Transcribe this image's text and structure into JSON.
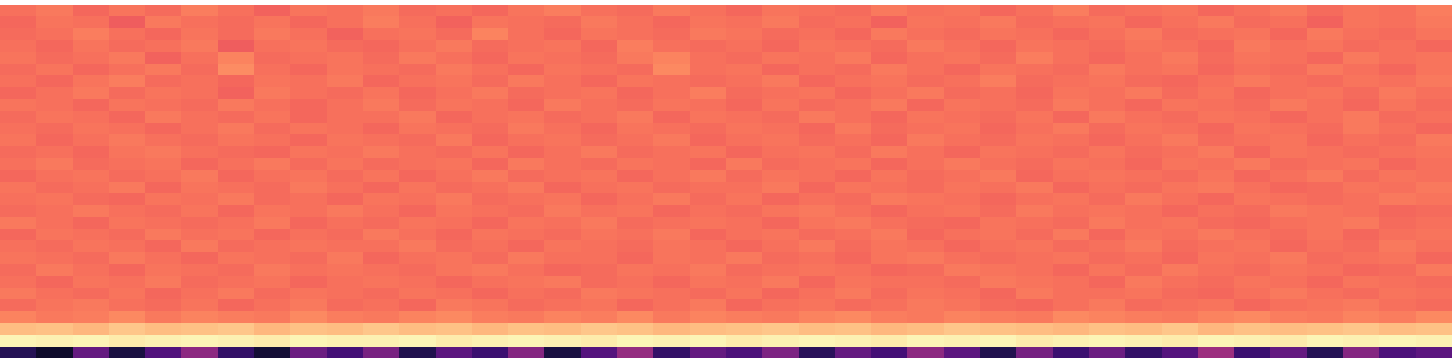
{
  "chart_data": {
    "type": "heatmap",
    "color": "magma",
    "zlim": [
      0,
      1
    ],
    "tick_labels": false,
    "cells": [
      [
        0.7,
        0.72,
        0.68,
        0.71,
        0.69,
        0.73,
        0.7,
        0.67,
        0.71,
        0.7,
        0.72,
        0.69,
        0.7,
        0.68,
        0.71,
        0.73,
        0.7,
        0.69,
        0.72,
        0.7,
        0.68,
        0.71,
        0.7,
        0.69,
        0.72,
        0.7,
        0.71,
        0.68,
        0.7,
        0.73,
        0.69,
        0.7,
        0.71,
        0.68,
        0.7,
        0.72,
        0.69,
        0.71,
        0.7,
        0.73
      ],
      [
        0.68,
        0.71,
        0.7,
        0.66,
        0.72,
        0.7,
        0.69,
        0.71,
        0.68,
        0.7,
        0.73,
        0.7,
        0.67,
        0.71,
        0.7,
        0.69,
        0.72,
        0.7,
        0.68,
        0.71,
        0.7,
        0.72,
        0.69,
        0.7,
        0.67,
        0.71,
        0.7,
        0.72,
        0.69,
        0.7,
        0.71,
        0.68,
        0.7,
        0.72,
        0.69,
        0.7,
        0.67,
        0.71,
        0.7,
        0.72
      ],
      [
        0.69,
        0.7,
        0.73,
        0.7,
        0.68,
        0.71,
        0.69,
        0.72,
        0.7,
        0.67,
        0.7,
        0.71,
        0.69,
        0.74,
        0.7,
        0.68,
        0.71,
        0.7,
        0.69,
        0.72,
        0.71,
        0.69,
        0.7,
        0.68,
        0.72,
        0.7,
        0.69,
        0.71,
        0.7,
        0.68,
        0.7,
        0.72,
        0.69,
        0.7,
        0.71,
        0.68,
        0.72,
        0.7,
        0.69,
        0.71
      ],
      [
        0.7,
        0.68,
        0.71,
        0.69,
        0.7,
        0.72,
        0.66,
        0.7,
        0.71,
        0.69,
        0.68,
        0.7,
        0.72,
        0.69,
        0.7,
        0.71,
        0.68,
        0.73,
        0.7,
        0.69,
        0.7,
        0.68,
        0.71,
        0.7,
        0.69,
        0.72,
        0.7,
        0.68,
        0.71,
        0.7,
        0.69,
        0.71,
        0.7,
        0.68,
        0.72,
        0.7,
        0.71,
        0.69,
        0.7,
        0.68
      ],
      [
        0.71,
        0.69,
        0.7,
        0.72,
        0.67,
        0.7,
        0.74,
        0.69,
        0.7,
        0.71,
        0.69,
        0.72,
        0.7,
        0.68,
        0.71,
        0.7,
        0.69,
        0.72,
        0.74,
        0.7,
        0.69,
        0.71,
        0.7,
        0.72,
        0.68,
        0.7,
        0.71,
        0.69,
        0.73,
        0.7,
        0.68,
        0.7,
        0.72,
        0.69,
        0.71,
        0.7,
        0.68,
        0.72,
        0.7,
        0.71
      ],
      [
        0.69,
        0.71,
        0.68,
        0.7,
        0.72,
        0.69,
        0.76,
        0.7,
        0.68,
        0.71,
        0.7,
        0.69,
        0.72,
        0.7,
        0.68,
        0.71,
        0.7,
        0.69,
        0.75,
        0.7,
        0.71,
        0.68,
        0.7,
        0.69,
        0.72,
        0.7,
        0.68,
        0.71,
        0.7,
        0.69,
        0.72,
        0.7,
        0.71,
        0.68,
        0.7,
        0.69,
        0.72,
        0.7,
        0.68,
        0.71
      ],
      [
        0.7,
        0.68,
        0.71,
        0.73,
        0.69,
        0.7,
        0.68,
        0.71,
        0.7,
        0.72,
        0.68,
        0.7,
        0.71,
        0.69,
        0.72,
        0.7,
        0.68,
        0.71,
        0.7,
        0.69,
        0.7,
        0.72,
        0.68,
        0.7,
        0.71,
        0.69,
        0.7,
        0.73,
        0.69,
        0.7,
        0.71,
        0.69,
        0.68,
        0.7,
        0.72,
        0.7,
        0.69,
        0.71,
        0.7,
        0.72
      ],
      [
        0.68,
        0.7,
        0.72,
        0.69,
        0.71,
        0.7,
        0.67,
        0.72,
        0.7,
        0.69,
        0.71,
        0.68,
        0.7,
        0.72,
        0.69,
        0.7,
        0.71,
        0.68,
        0.7,
        0.73,
        0.69,
        0.7,
        0.71,
        0.68,
        0.7,
        0.72,
        0.69,
        0.7,
        0.68,
        0.71,
        0.7,
        0.72,
        0.69,
        0.71,
        0.68,
        0.7,
        0.71,
        0.69,
        0.72,
        0.7
      ],
      [
        0.71,
        0.7,
        0.68,
        0.71,
        0.7,
        0.69,
        0.72,
        0.7,
        0.68,
        0.7,
        0.72,
        0.69,
        0.71,
        0.7,
        0.68,
        0.72,
        0.7,
        0.69,
        0.71,
        0.7,
        0.68,
        0.71,
        0.69,
        0.7,
        0.72,
        0.68,
        0.71,
        0.7,
        0.69,
        0.72,
        0.7,
        0.68,
        0.71,
        0.7,
        0.69,
        0.72,
        0.7,
        0.68,
        0.71,
        0.69
      ],
      [
        0.69,
        0.71,
        0.7,
        0.68,
        0.72,
        0.7,
        0.69,
        0.71,
        0.68,
        0.7,
        0.7,
        0.72,
        0.68,
        0.7,
        0.71,
        0.69,
        0.7,
        0.72,
        0.68,
        0.71,
        0.7,
        0.69,
        0.72,
        0.7,
        0.68,
        0.71,
        0.7,
        0.69,
        0.71,
        0.68,
        0.72,
        0.7,
        0.69,
        0.71,
        0.7,
        0.68,
        0.7,
        0.72,
        0.69,
        0.7
      ],
      [
        0.7,
        0.69,
        0.71,
        0.7,
        0.68,
        0.7,
        0.72,
        0.69,
        0.71,
        0.7,
        0.68,
        0.71,
        0.7,
        0.69,
        0.72,
        0.7,
        0.68,
        0.71,
        0.7,
        0.69,
        0.71,
        0.7,
        0.68,
        0.72,
        0.69,
        0.7,
        0.71,
        0.68,
        0.7,
        0.72,
        0.69,
        0.71,
        0.7,
        0.68,
        0.71,
        0.7,
        0.69,
        0.72,
        0.7,
        0.68
      ],
      [
        0.71,
        0.68,
        0.7,
        0.72,
        0.7,
        0.69,
        0.71,
        0.7,
        0.68,
        0.71,
        0.7,
        0.69,
        0.72,
        0.68,
        0.7,
        0.71,
        0.69,
        0.7,
        0.72,
        0.68,
        0.7,
        0.71,
        0.69,
        0.7,
        0.68,
        0.72,
        0.7,
        0.69,
        0.71,
        0.7,
        0.68,
        0.7,
        0.72,
        0.69,
        0.7,
        0.71,
        0.68,
        0.7,
        0.69,
        0.72
      ],
      [
        0.69,
        0.7,
        0.68,
        0.71,
        0.72,
        0.7,
        0.69,
        0.68,
        0.71,
        0.7,
        0.72,
        0.7,
        0.69,
        0.71,
        0.68,
        0.7,
        0.72,
        0.69,
        0.7,
        0.71,
        0.68,
        0.7,
        0.71,
        0.69,
        0.72,
        0.7,
        0.68,
        0.71,
        0.7,
        0.69,
        0.71,
        0.69,
        0.7,
        0.72,
        0.68,
        0.71,
        0.7,
        0.69,
        0.7,
        0.71
      ],
      [
        0.7,
        0.72,
        0.69,
        0.7,
        0.71,
        0.68,
        0.7,
        0.72,
        0.69,
        0.71,
        0.69,
        0.7,
        0.71,
        0.68,
        0.72,
        0.7,
        0.69,
        0.71,
        0.7,
        0.68,
        0.72,
        0.69,
        0.7,
        0.71,
        0.68,
        0.7,
        0.72,
        0.7,
        0.69,
        0.71,
        0.7,
        0.68,
        0.71,
        0.7,
        0.72,
        0.69,
        0.7,
        0.71,
        0.68,
        0.7
      ],
      [
        0.68,
        0.7,
        0.71,
        0.69,
        0.7,
        0.72,
        0.68,
        0.7,
        0.71,
        0.69,
        0.71,
        0.68,
        0.7,
        0.72,
        0.69,
        0.7,
        0.71,
        0.68,
        0.7,
        0.72,
        0.69,
        0.71,
        0.7,
        0.68,
        0.71,
        0.69,
        0.7,
        0.72,
        0.68,
        0.7,
        0.71,
        0.7,
        0.69,
        0.71,
        0.68,
        0.7,
        0.72,
        0.69,
        0.71,
        0.7
      ],
      [
        0.71,
        0.69,
        0.7,
        0.72,
        0.68,
        0.71,
        0.7,
        0.69,
        0.72,
        0.7,
        0.68,
        0.71,
        0.69,
        0.7,
        0.72,
        0.68,
        0.7,
        0.71,
        0.69,
        0.7,
        0.7,
        0.72,
        0.68,
        0.71,
        0.7,
        0.69,
        0.71,
        0.7,
        0.72,
        0.68,
        0.7,
        0.69,
        0.71,
        0.72,
        0.7,
        0.68,
        0.69,
        0.71,
        0.7,
        0.72
      ],
      [
        0.7,
        0.71,
        0.69,
        0.68,
        0.71,
        0.7,
        0.72,
        0.69,
        0.7,
        0.68,
        0.71,
        0.7,
        0.72,
        0.69,
        0.7,
        0.71,
        0.68,
        0.7,
        0.72,
        0.69,
        0.71,
        0.68,
        0.7,
        0.69,
        0.72,
        0.71,
        0.7,
        0.68,
        0.7,
        0.71,
        0.69,
        0.72,
        0.7,
        0.68,
        0.71,
        0.7,
        0.69,
        0.7,
        0.72,
        0.71
      ],
      [
        0.69,
        0.7,
        0.72,
        0.7,
        0.69,
        0.71,
        0.68,
        0.71,
        0.7,
        0.72,
        0.7,
        0.68,
        0.71,
        0.7,
        0.69,
        0.72,
        0.7,
        0.71,
        0.68,
        0.7,
        0.69,
        0.71,
        0.72,
        0.7,
        0.68,
        0.7,
        0.71,
        0.69,
        0.72,
        0.7,
        0.71,
        0.7,
        0.68,
        0.7,
        0.69,
        0.72,
        0.71,
        0.7,
        0.68,
        0.69
      ],
      [
        0.72,
        0.7,
        0.68,
        0.71,
        0.7,
        0.69,
        0.7,
        0.72,
        0.68,
        0.7,
        0.69,
        0.71,
        0.7,
        0.68,
        0.71,
        0.7,
        0.72,
        0.69,
        0.7,
        0.71,
        0.7,
        0.68,
        0.71,
        0.72,
        0.7,
        0.69,
        0.68,
        0.71,
        0.7,
        0.69,
        0.72,
        0.7,
        0.71,
        0.69,
        0.68,
        0.7,
        0.71,
        0.72,
        0.69,
        0.7
      ],
      [
        0.68,
        0.71,
        0.7,
        0.69,
        0.72,
        0.7,
        0.71,
        0.68,
        0.7,
        0.69,
        0.72,
        0.7,
        0.68,
        0.71,
        0.7,
        0.69,
        0.71,
        0.7,
        0.72,
        0.68,
        0.7,
        0.71,
        0.69,
        0.7,
        0.72,
        0.68,
        0.7,
        0.71,
        0.69,
        0.72,
        0.68,
        0.71,
        0.7,
        0.72,
        0.7,
        0.69,
        0.71,
        0.68,
        0.7,
        0.71
      ],
      [
        0.7,
        0.69,
        0.71,
        0.7,
        0.68,
        0.72,
        0.69,
        0.7,
        0.71,
        0.7,
        0.7,
        0.72,
        0.69,
        0.7,
        0.68,
        0.71,
        0.7,
        0.69,
        0.71,
        0.7,
        0.68,
        0.7,
        0.72,
        0.69,
        0.71,
        0.7,
        0.68,
        0.7,
        0.71,
        0.69,
        0.7,
        0.72,
        0.69,
        0.7,
        0.71,
        0.68,
        0.7,
        0.69,
        0.72,
        0.7
      ],
      [
        0.71,
        0.7,
        0.69,
        0.72,
        0.7,
        0.68,
        0.71,
        0.7,
        0.69,
        0.72,
        0.68,
        0.7,
        0.71,
        0.69,
        0.72,
        0.7,
        0.7,
        0.68,
        0.71,
        0.7,
        0.72,
        0.69,
        0.7,
        0.68,
        0.71,
        0.72,
        0.7,
        0.69,
        0.7,
        0.71,
        0.69,
        0.7,
        0.68,
        0.71,
        0.7,
        0.72,
        0.69,
        0.7,
        0.71,
        0.68
      ],
      [
        0.69,
        0.72,
        0.7,
        0.68,
        0.71,
        0.7,
        0.69,
        0.72,
        0.7,
        0.71,
        0.7,
        0.69,
        0.71,
        0.72,
        0.7,
        0.68,
        0.69,
        0.71,
        0.7,
        0.72,
        0.69,
        0.7,
        0.71,
        0.7,
        0.68,
        0.69,
        0.72,
        0.71,
        0.7,
        0.68,
        0.71,
        0.69,
        0.72,
        0.7,
        0.69,
        0.71,
        0.7,
        0.68,
        0.69,
        0.72
      ],
      [
        0.7,
        0.68,
        0.71,
        0.7,
        0.72,
        0.69,
        0.7,
        0.71,
        0.68,
        0.7,
        0.71,
        0.7,
        0.68,
        0.7,
        0.71,
        0.72,
        0.69,
        0.7,
        0.68,
        0.71,
        0.7,
        0.72,
        0.68,
        0.71,
        0.7,
        0.7,
        0.69,
        0.72,
        0.71,
        0.7,
        0.68,
        0.72,
        0.7,
        0.69,
        0.71,
        0.7,
        0.68,
        0.71,
        0.7,
        0.69
      ],
      [
        0.72,
        0.7,
        0.69,
        0.71,
        0.68,
        0.7,
        0.72,
        0.69,
        0.71,
        0.7,
        0.69,
        0.71,
        0.7,
        0.68,
        0.7,
        0.69,
        0.72,
        0.71,
        0.7,
        0.69,
        0.71,
        0.68,
        0.7,
        0.72,
        0.69,
        0.71,
        0.7,
        0.68,
        0.72,
        0.7,
        0.7,
        0.71,
        0.69,
        0.68,
        0.7,
        0.72,
        0.7,
        0.69,
        0.71,
        0.7
      ],
      [
        0.69,
        0.71,
        0.72,
        0.7,
        0.69,
        0.71,
        0.68,
        0.7,
        0.72,
        0.69,
        0.7,
        0.68,
        0.72,
        0.71,
        0.69,
        0.7,
        0.71,
        0.68,
        0.7,
        0.72,
        0.68,
        0.7,
        0.71,
        0.69,
        0.7,
        0.72,
        0.71,
        0.69,
        0.68,
        0.7,
        0.72,
        0.69,
        0.7,
        0.71,
        0.68,
        0.7,
        0.71,
        0.72,
        0.7,
        0.69
      ],
      [
        0.74,
        0.72,
        0.73,
        0.75,
        0.72,
        0.74,
        0.73,
        0.72,
        0.75,
        0.73,
        0.72,
        0.74,
        0.75,
        0.73,
        0.72,
        0.74,
        0.73,
        0.75,
        0.72,
        0.74,
        0.73,
        0.72,
        0.74,
        0.75,
        0.73,
        0.72,
        0.74,
        0.73,
        0.72,
        0.75,
        0.74,
        0.73,
        0.72,
        0.74,
        0.75,
        0.73,
        0.72,
        0.74,
        0.73,
        0.75
      ],
      [
        0.86,
        0.87,
        0.85,
        0.88,
        0.86,
        0.87,
        0.88,
        0.85,
        0.87,
        0.86,
        0.88,
        0.86,
        0.87,
        0.85,
        0.87,
        0.86,
        0.88,
        0.87,
        0.85,
        0.86,
        0.87,
        0.88,
        0.86,
        0.87,
        0.85,
        0.86,
        0.88,
        0.87,
        0.86,
        0.85,
        0.87,
        0.86,
        0.88,
        0.85,
        0.87,
        0.86,
        0.87,
        0.88,
        0.86,
        0.87
      ],
      [
        0.98,
        0.97,
        0.98,
        0.96,
        0.97,
        0.98,
        0.97,
        0.96,
        0.98,
        0.97,
        0.97,
        0.98,
        0.96,
        0.97,
        0.98,
        0.97,
        0.96,
        0.98,
        0.97,
        0.98,
        0.96,
        0.97,
        0.98,
        0.97,
        0.96,
        0.98,
        0.97,
        0.98,
        0.96,
        0.97,
        0.98,
        0.97,
        0.96,
        0.98,
        0.97,
        0.96,
        0.98,
        0.97,
        0.98,
        0.97
      ],
      [
        0.15,
        0.08,
        0.3,
        0.12,
        0.25,
        0.4,
        0.18,
        0.1,
        0.32,
        0.22,
        0.35,
        0.14,
        0.28,
        0.2,
        0.38,
        0.12,
        0.26,
        0.42,
        0.18,
        0.3,
        0.24,
        0.36,
        0.16,
        0.3,
        0.22,
        0.4,
        0.28,
        0.14,
        0.34,
        0.2,
        0.32,
        0.18,
        0.26,
        0.44,
        0.2,
        0.3,
        0.15,
        0.38,
        0.24,
        0.28
      ]
    ]
  }
}
